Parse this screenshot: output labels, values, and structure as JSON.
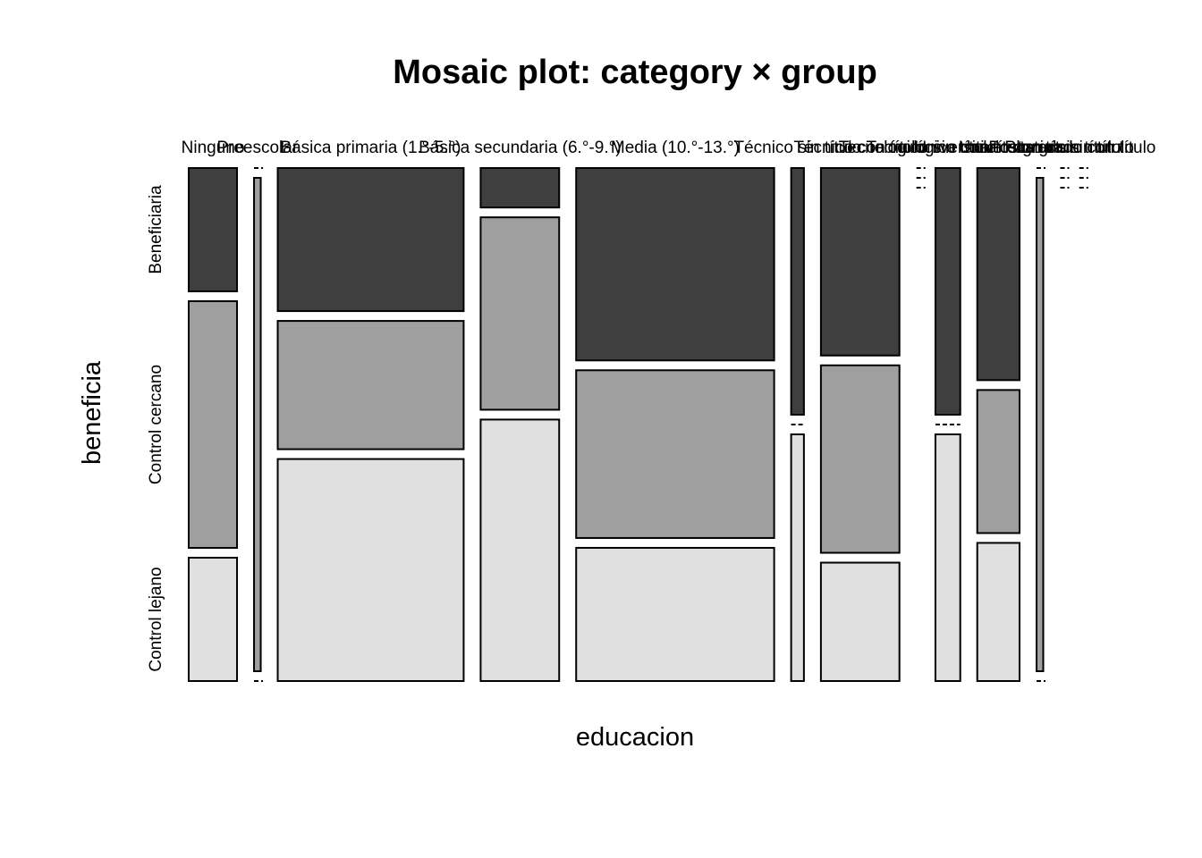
{
  "chart_data": {
    "type": "mosaic",
    "title": "Mosaic plot: category × group",
    "xlabel": "educacion",
    "ylabel": "beneficia",
    "x_categories": [
      "Ninguno",
      "Preescolar",
      "Básica primaria (1.°-5.°)",
      "Básica secundaria (6.°-9.°)",
      "Media (10.°-13.°)",
      "Técnico sin título",
      "Técnico con título",
      "Tecnológico sin título",
      "Tecnológico con título",
      "Universitario con título",
      "Universitario sin título",
      "Postgrado sin título",
      "Postgrado con título"
    ],
    "y_categories": [
      "Beneficiaria",
      "Control cercano",
      "Control lejano"
    ],
    "colors": [
      "#3f3f3f",
      "#9f9f9f",
      "#e0e0e0"
    ],
    "column_proportions": [
      0.072,
      0.01,
      0.277,
      0.117,
      0.295,
      0.019,
      0.117,
      0.003,
      0.037,
      0.063,
      0.01,
      0.003,
      0.003
    ],
    "conditional_proportions": [
      [
        0.26,
        0.52,
        0.26
      ],
      [
        0.0,
        1.0,
        0.0
      ],
      [
        0.29,
        0.26,
        0.45
      ],
      [
        0.08,
        0.39,
        0.53
      ],
      [
        0.39,
        0.34,
        0.27
      ],
      [
        0.5,
        0.0,
        0.5
      ],
      [
        0.38,
        0.38,
        0.24
      ],
      [
        0.0,
        0.0,
        0.0
      ],
      [
        0.5,
        0.0,
        0.5
      ],
      [
        0.43,
        0.29,
        0.28
      ],
      [
        0.0,
        1.0,
        0.0
      ],
      [
        0.0,
        0.0,
        0.0
      ],
      [
        0.0,
        0.0,
        0.0
      ]
    ]
  }
}
